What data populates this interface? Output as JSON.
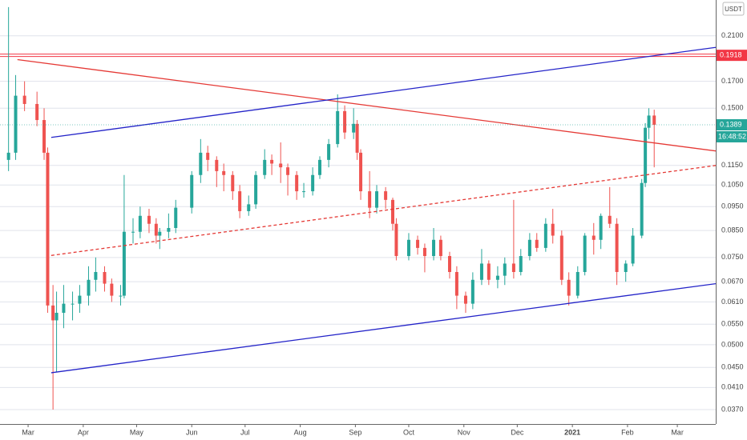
{
  "chart_data": {
    "type": "candlestick",
    "currency": "USDT",
    "log_scale": true,
    "grid": true,
    "up_color": "#26a69a",
    "down_color": "#ef5350",
    "x": [
      -11,
      -7,
      -2,
      5,
      9,
      11,
      14,
      16,
      20,
      25,
      29,
      34,
      38,
      43,
      47,
      52,
      54,
      59,
      63,
      68,
      72,
      74,
      79,
      83,
      92,
      97,
      101,
      106,
      110,
      115,
      119,
      124,
      128,
      133,
      137,
      142,
      146,
      151,
      155,
      160,
      164,
      169,
      174,
      178,
      183,
      185,
      187,
      192,
      196,
      201,
      205,
      207,
      214,
      219,
      223,
      228,
      232,
      237,
      241,
      246,
      250,
      255,
      259,
      264,
      268,
      273,
      277,
      282,
      286,
      291,
      295,
      300,
      304,
      309,
      313,
      318,
      322,
      327,
      331,
      336,
      340,
      345,
      347,
      349,
      352
    ],
    "open": [
      0.118,
      0.122,
      0.159,
      0.153,
      0.142,
      0.122,
      0.06,
      0.056,
      0.058,
      0.0605,
      0.0605,
      0.0628,
      0.0676,
      0.0701,
      0.0664,
      0.0628,
      0.0628,
      0.0845,
      0.0845,
      0.091,
      0.0877,
      0.083,
      0.0845,
      0.086,
      0.0945,
      0.11,
      0.122,
      0.118,
      0.112,
      0.11,
      0.102,
      0.093,
      0.096,
      0.11,
      0.118,
      0.116,
      0.114,
      0.11,
      0.102,
      0.102,
      0.11,
      0.118,
      0.127,
      0.148,
      0.134,
      0.1395,
      0.122,
      0.102,
      0.0945,
      0.102,
      0.098,
      0.0877,
      0.0755,
      0.0814,
      0.0784,
      0.0755,
      0.0814,
      0.0755,
      0.0701,
      0.0628,
      0.0605,
      0.0676,
      0.0729,
      0.0676,
      0.0689,
      0.0729,
      0.0701,
      0.0755,
      0.0814,
      0.0784,
      0.0877,
      0.083,
      0.0676,
      0.0628,
      0.0701,
      0.083,
      0.0814,
      0.091,
      0.0877,
      0.0701,
      0.0729,
      0.083,
      0.106,
      0.137,
      0.145
    ],
    "high": [
      0.24,
      0.175,
      0.17,
      0.162,
      0.15,
      0.125,
      0.066,
      0.064,
      0.066,
      0.064,
      0.066,
      0.072,
      0.075,
      0.072,
      0.068,
      0.066,
      0.11,
      0.09,
      0.095,
      0.094,
      0.09,
      0.086,
      0.092,
      0.098,
      0.112,
      0.13,
      0.126,
      0.12,
      0.116,
      0.112,
      0.105,
      0.1,
      0.112,
      0.124,
      0.121,
      0.128,
      0.116,
      0.112,
      0.106,
      0.114,
      0.12,
      0.13,
      0.16,
      0.152,
      0.15,
      0.142,
      0.124,
      0.112,
      0.105,
      0.104,
      0.099,
      0.09,
      0.084,
      0.083,
      0.08,
      0.086,
      0.083,
      0.077,
      0.072,
      0.064,
      0.07,
      0.078,
      0.074,
      0.072,
      0.075,
      0.098,
      0.078,
      0.084,
      0.084,
      0.09,
      0.094,
      0.085,
      0.07,
      0.072,
      0.084,
      0.088,
      0.092,
      0.104,
      0.09,
      0.074,
      0.086,
      0.108,
      0.14,
      0.15,
      0.149
    ],
    "low": [
      0.112,
      0.118,
      0.148,
      0.138,
      0.118,
      0.058,
      0.037,
      0.044,
      0.054,
      0.056,
      0.058,
      0.06,
      0.064,
      0.064,
      0.061,
      0.06,
      0.062,
      0.08,
      0.082,
      0.084,
      0.08,
      0.078,
      0.082,
      0.084,
      0.092,
      0.106,
      0.112,
      0.104,
      0.102,
      0.098,
      0.09,
      0.091,
      0.094,
      0.108,
      0.11,
      0.106,
      0.1,
      0.098,
      0.099,
      0.1,
      0.108,
      0.114,
      0.125,
      0.13,
      0.13,
      0.118,
      0.098,
      0.09,
      0.092,
      0.094,
      0.085,
      0.074,
      0.074,
      0.076,
      0.07,
      0.074,
      0.074,
      0.068,
      0.059,
      0.058,
      0.059,
      0.066,
      0.066,
      0.065,
      0.066,
      0.068,
      0.069,
      0.074,
      0.077,
      0.077,
      0.08,
      0.066,
      0.06,
      0.062,
      0.069,
      0.076,
      0.078,
      0.086,
      0.066,
      0.067,
      0.072,
      0.082,
      0.104,
      0.13,
      0.114
    ],
    "close": [
      0.122,
      0.159,
      0.153,
      0.142,
      0.122,
      0.06,
      0.056,
      0.058,
      0.0605,
      0.0605,
      0.0628,
      0.0676,
      0.0701,
      0.0664,
      0.0628,
      0.0628,
      0.0845,
      0.0845,
      0.091,
      0.0877,
      0.083,
      0.0845,
      0.086,
      0.0945,
      0.11,
      0.122,
      0.118,
      0.112,
      0.11,
      0.102,
      0.093,
      0.096,
      0.11,
      0.118,
      0.116,
      0.114,
      0.11,
      0.102,
      0.102,
      0.11,
      0.118,
      0.127,
      0.148,
      0.134,
      0.1395,
      0.122,
      0.102,
      0.0945,
      0.102,
      0.098,
      0.0877,
      0.0755,
      0.0814,
      0.0784,
      0.0755,
      0.0814,
      0.0755,
      0.0701,
      0.0628,
      0.0605,
      0.0676,
      0.0729,
      0.0676,
      0.0689,
      0.0729,
      0.0701,
      0.0755,
      0.0814,
      0.0784,
      0.0877,
      0.083,
      0.0676,
      0.0628,
      0.0701,
      0.083,
      0.0814,
      0.091,
      0.0877,
      0.0701,
      0.0729,
      0.083,
      0.106,
      0.137,
      0.145,
      0.1389
    ],
    "xlim": [
      -15.8,
      386.6
    ],
    "xticks": [
      {
        "value": 0,
        "label": "Mar"
      },
      {
        "value": 31,
        "label": "Apr"
      },
      {
        "value": 61,
        "label": "May"
      },
      {
        "value": 92,
        "label": "Jun"
      },
      {
        "value": 122,
        "label": "Jul"
      },
      {
        "value": 153,
        "label": "Aug"
      },
      {
        "value": 184,
        "label": "Sep"
      },
      {
        "value": 214,
        "label": "Oct"
      },
      {
        "value": 245,
        "label": "Nov"
      },
      {
        "value": 275,
        "label": "Dec"
      },
      {
        "value": 306,
        "label": "2021"
      },
      {
        "value": 337,
        "label": "Feb"
      },
      {
        "value": 365,
        "label": "Mar"
      }
    ],
    "ylim": [
      0.0346,
      0.248
    ],
    "yticks": [
      {
        "value": 0.21,
        "label": "0.2100"
      },
      {
        "value": 0.17,
        "label": "0.1700"
      },
      {
        "value": 0.15,
        "label": "0.1500"
      },
      {
        "value": 0.115,
        "label": "0.1150"
      },
      {
        "value": 0.105,
        "label": "0.1050"
      },
      {
        "value": 0.095,
        "label": "0.0950"
      },
      {
        "value": 0.085,
        "label": "0.0850"
      },
      {
        "value": 0.075,
        "label": "0.0750"
      },
      {
        "value": 0.067,
        "label": "0.0670"
      },
      {
        "value": 0.061,
        "label": "0.0610"
      },
      {
        "value": 0.055,
        "label": "0.0550"
      },
      {
        "value": 0.05,
        "label": "0.0500"
      },
      {
        "value": 0.045,
        "label": "0.0450"
      },
      {
        "value": 0.041,
        "label": "0.0410"
      },
      {
        "value": 0.037,
        "label": "0.0370"
      }
    ],
    "horizontal_lines": [
      {
        "value": 0.1918,
        "color": "#f23645"
      }
    ],
    "trend_lines": [
      {
        "color": "#e53935",
        "dashed": false,
        "x": [
          -6,
          386.6
        ],
        "values": [
          0.188,
          0.123
        ]
      },
      {
        "color": "#2323c8",
        "dashed": false,
        "x": [
          13,
          386.6
        ],
        "values": [
          0.131,
          0.199
        ]
      },
      {
        "color": "#2323c8",
        "dashed": false,
        "x": [
          13,
          386.6
        ],
        "values": [
          0.0439,
          0.0664
        ]
      },
      {
        "color": "#e53935",
        "dashed": true,
        "x": [
          13,
          386.6
        ],
        "values": [
          0.0757,
          0.115
        ]
      }
    ],
    "last_price": 0.1389,
    "countdown": "16:48:52",
    "last_color": "#26a69a"
  }
}
